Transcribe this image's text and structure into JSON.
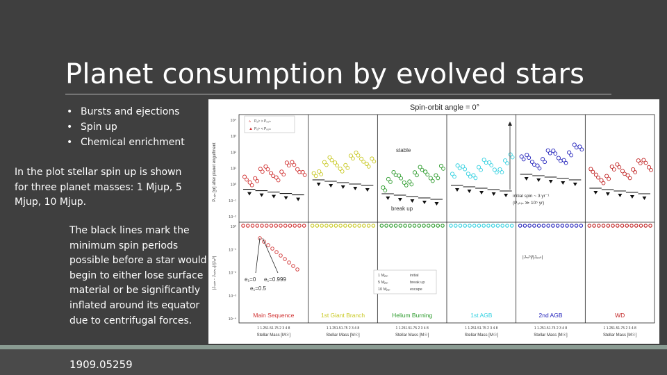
{
  "slide": {
    "title": "Planet consumption by evolved stars",
    "bullets": [
      "Bursts and ejections",
      "Spin up",
      "Chemical enrichment"
    ],
    "para1": "In the plot stellar spin up is shown for three planet masses: 1 Mjup, 5 Mjup, 10 Mjup.",
    "para2": "The black lines mark the minimum spin periods possible before a star would begin to either lose surface material or be significantly inflated around its equator due to centrifugal forces.",
    "reference": "1909.05259"
  },
  "figure": {
    "title": "Spin-orbit angle = 0°",
    "panels": [
      {
        "label": "Main Sequence",
        "color": "#d03030"
      },
      {
        "label": "1st Giant Branch",
        "color": "#c8c820"
      },
      {
        "label": "Helium Burning",
        "color": "#2a9a2a"
      },
      {
        "label": "1st AGB",
        "color": "#30d0e0"
      },
      {
        "label": "2nd AGB",
        "color": "#2222bb"
      },
      {
        "label": "WD",
        "color": "#c02020"
      }
    ],
    "xlabel": "Stellar Mass [M☉]",
    "xticks": "1 1.251.51.75 2  3  4  8",
    "annotations": {
      "stable": "stable",
      "break_up": "break up",
      "initial_spin": "initial spin ~ 3 yr⁻¹",
      "initial_spin2": "(P₀ₖᵢₙ ≫ 10⁵ yr)",
      "e0": "e₁=0",
      "e999": "e₁=0.999",
      "e05": "e₁=0.5",
      "jratio": "|Jₙᵣᵇ|/|Jₒ₀ₖ|"
    },
    "legend_top": [
      "Pₒᵣᵇ > Pₒ₀ₖₗ",
      "Pₒᵣᵇ < Pₒ₀ₖₗ"
    ],
    "legend_bottom": [
      "1 Mⱼᵤₚ",
      "5 Mⱼᵤₚ",
      "10 Mⱼᵤₚ",
      "initial",
      "break up",
      "escape"
    ],
    "y_top_ticks": [
      "10⁴",
      "10³",
      "10²",
      "10¹",
      "10⁰",
      "10⁻¹",
      "10⁻²"
    ],
    "y_bottom_ticks": [
      "10⁰",
      "10⁻¹",
      "10⁻²",
      "10⁻³",
      "10⁻⁴"
    ],
    "y_top_label": "Pₛₚᵢₙ [yr] after planet engulfment",
    "y_bottom_label": "|Jₛₚᵢₙ - Jₛₚᵢₙ,₀|/|Jₒᵣᵇ|"
  }
}
